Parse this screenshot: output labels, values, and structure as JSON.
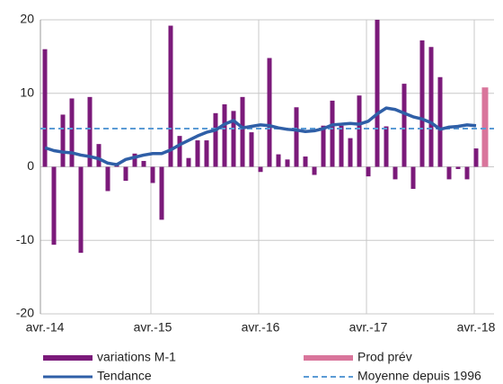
{
  "chart_data": {
    "type": "bar",
    "categories": [
      "avr.-14",
      null,
      null,
      null,
      null,
      null,
      null,
      null,
      null,
      null,
      null,
      null,
      "avr.-15",
      null,
      null,
      null,
      null,
      null,
      null,
      null,
      null,
      null,
      null,
      null,
      "avr.-16",
      null,
      null,
      null,
      null,
      null,
      null,
      null,
      null,
      null,
      null,
      null,
      "avr.-17",
      null,
      null,
      null,
      null,
      null,
      null,
      null,
      null,
      null,
      null,
      null,
      "avr.-18",
      null
    ],
    "series": [
      {
        "name": "variations M-1",
        "color": "#7b1a7a",
        "type": "bar",
        "values": [
          16,
          -10.6,
          7.1,
          9.3,
          -11.7,
          9.5,
          3.1,
          -3.3,
          0.3,
          -1.9,
          1.8,
          0.8,
          -2.2,
          -7.2,
          19.2,
          4.2,
          1.2,
          3.6,
          3.6,
          7.3,
          8.5,
          7.6,
          9.5,
          4.7,
          -0.7,
          14.8,
          1.7,
          1.0,
          8.1,
          1.4,
          -1.1,
          5.6,
          9.0,
          5.6,
          3.9,
          9.7,
          -1.3,
          20,
          5.5,
          -1.7,
          11.3,
          -3.0,
          17.2,
          16.3,
          12.2,
          -1.7,
          -0.3,
          -1.7,
          2.5,
          null
        ]
      },
      {
        "name": "Prod prév",
        "color": "#d9759b",
        "type": "bar",
        "values": [
          null,
          null,
          null,
          null,
          null,
          null,
          null,
          null,
          null,
          null,
          null,
          null,
          null,
          null,
          null,
          null,
          null,
          null,
          null,
          null,
          null,
          null,
          null,
          null,
          null,
          null,
          null,
          null,
          null,
          null,
          null,
          null,
          null,
          null,
          null,
          null,
          null,
          null,
          null,
          null,
          null,
          null,
          null,
          null,
          null,
          null,
          null,
          null,
          null,
          10.8
        ]
      },
      {
        "name": "Tendance",
        "color": "#2f5fa7",
        "type": "line",
        "values": [
          2.6,
          2.2,
          2.0,
          1.9,
          1.6,
          1.4,
          1.1,
          0.5,
          0.3,
          1.0,
          1.3,
          1.6,
          1.8,
          1.8,
          2.3,
          3.0,
          3.6,
          4.2,
          4.7,
          5.0,
          5.8,
          6.3,
          5.3,
          5.5,
          5.7,
          5.6,
          5.3,
          5.1,
          5.0,
          4.8,
          4.9,
          5.2,
          5.7,
          5.8,
          5.9,
          5.8,
          6.2,
          7.2,
          8.0,
          7.8,
          7.3,
          6.8,
          6.5,
          6.0,
          5.1,
          5.4,
          5.5,
          5.7,
          5.6,
          null
        ]
      },
      {
        "name": "Moyenne depuis 1996",
        "color": "#5b9bd5",
        "type": "hline",
        "value": 5.2
      }
    ],
    "ylim": [
      -20,
      20
    ],
    "yticks": [
      -20,
      -10,
      0,
      10,
      20
    ],
    "grid": true,
    "legend": "bottom"
  }
}
